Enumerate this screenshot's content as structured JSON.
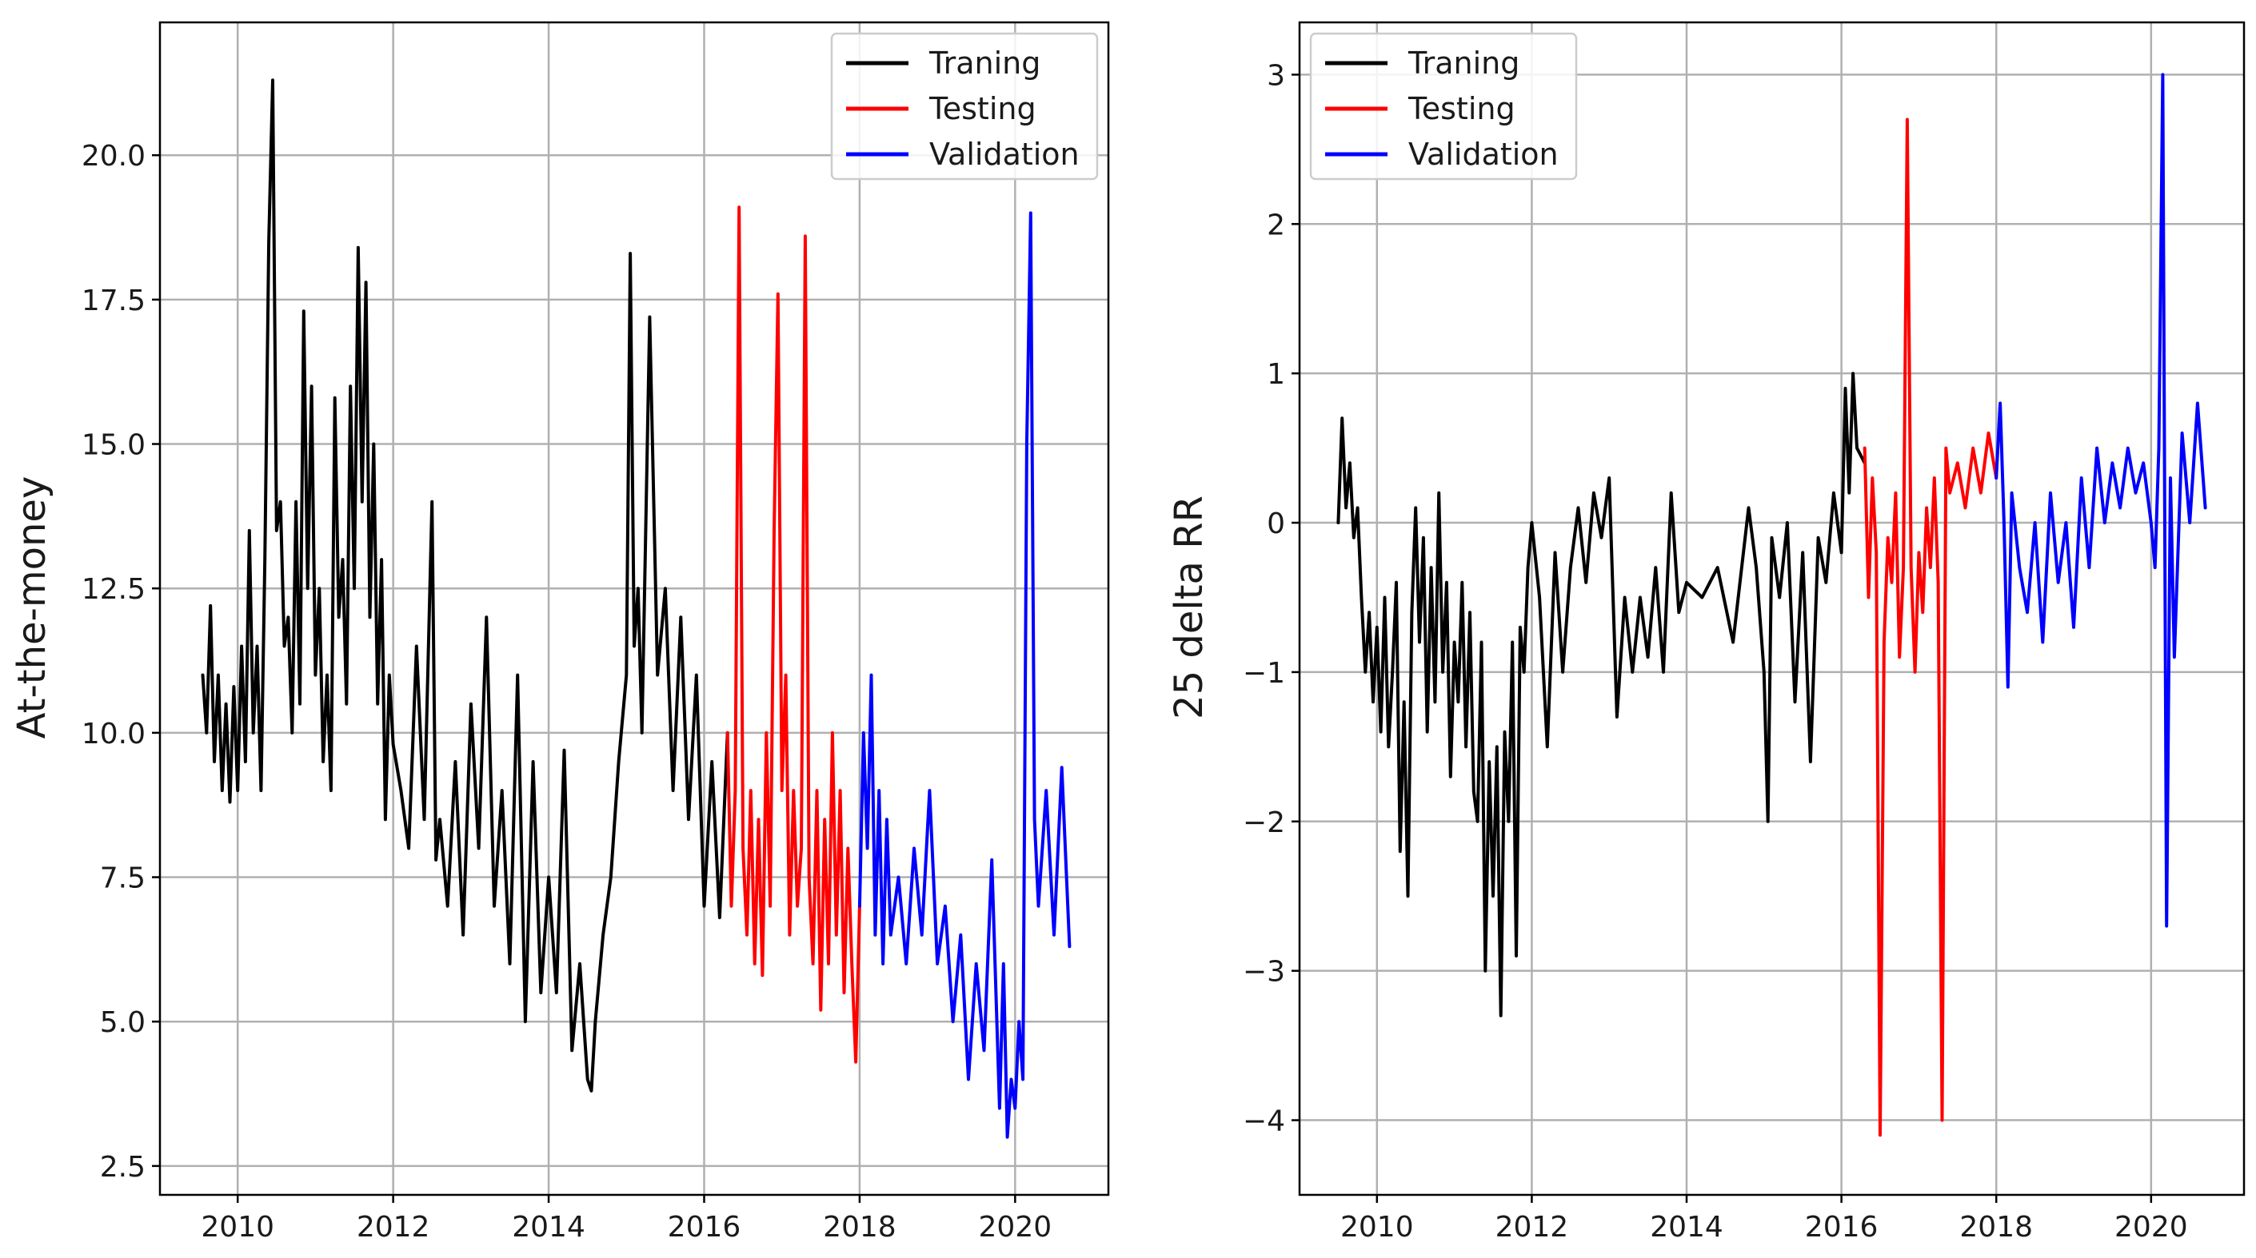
{
  "chart_data": [
    {
      "type": "line",
      "title": "",
      "xlabel": "",
      "ylabel": "At-the-money",
      "xlim": [
        2009.0,
        2021.2
      ],
      "ylim": [
        2.0,
        22.3
      ],
      "xticks": [
        2010,
        2012,
        2014,
        2016,
        2018,
        2020
      ],
      "xtick_labels": [
        "2010",
        "2012",
        "2014",
        "2016",
        "2018",
        "2020"
      ],
      "yticks": [
        2.5,
        5.0,
        7.5,
        10.0,
        12.5,
        15.0,
        17.5,
        20.0
      ],
      "ytick_labels": [
        "2.5",
        "5.0",
        "7.5",
        "10.0",
        "12.5",
        "15.0",
        "17.5",
        "20.0"
      ],
      "grid": true,
      "legend_position": "top-right",
      "series": [
        {
          "name": "Traning",
          "color": "#000000",
          "x": [
            2009.55,
            2009.6,
            2009.65,
            2009.7,
            2009.75,
            2009.8,
            2009.85,
            2009.9,
            2009.95,
            2010.0,
            2010.05,
            2010.1,
            2010.15,
            2010.2,
            2010.25,
            2010.3,
            2010.35,
            2010.4,
            2010.45,
            2010.5,
            2010.55,
            2010.6,
            2010.65,
            2010.7,
            2010.75,
            2010.8,
            2010.85,
            2010.9,
            2010.95,
            2011.0,
            2011.05,
            2011.1,
            2011.15,
            2011.2,
            2011.25,
            2011.3,
            2011.35,
            2011.4,
            2011.45,
            2011.5,
            2011.55,
            2011.6,
            2011.65,
            2011.7,
            2011.75,
            2011.8,
            2011.85,
            2011.9,
            2011.95,
            2012.0,
            2012.1,
            2012.2,
            2012.3,
            2012.4,
            2012.5,
            2012.55,
            2012.6,
            2012.7,
            2012.8,
            2012.9,
            2013.0,
            2013.1,
            2013.2,
            2013.3,
            2013.4,
            2013.5,
            2013.6,
            2013.7,
            2013.8,
            2013.9,
            2014.0,
            2014.1,
            2014.2,
            2014.3,
            2014.4,
            2014.5,
            2014.55,
            2014.6,
            2014.7,
            2014.8,
            2014.9,
            2015.0,
            2015.05,
            2015.1,
            2015.15,
            2015.2,
            2015.3,
            2015.4,
            2015.5,
            2015.6,
            2015.7,
            2015.8,
            2015.9,
            2016.0,
            2016.1,
            2016.2,
            2016.3
          ],
          "y": [
            11.0,
            10.0,
            12.2,
            9.5,
            11.0,
            9.0,
            10.5,
            8.8,
            10.8,
            9.0,
            11.5,
            9.5,
            13.5,
            10.0,
            11.5,
            9.0,
            13.0,
            18.5,
            21.3,
            13.5,
            14.0,
            11.5,
            12.0,
            10.0,
            14.0,
            10.5,
            17.3,
            12.5,
            16.0,
            11.0,
            12.5,
            9.5,
            11.0,
            9.0,
            15.8,
            12.0,
            13.0,
            10.5,
            16.0,
            12.5,
            18.4,
            14.0,
            17.8,
            12.0,
            15.0,
            10.5,
            13.0,
            8.5,
            11.0,
            9.8,
            9.0,
            8.0,
            11.5,
            8.5,
            14.0,
            7.8,
            8.5,
            7.0,
            9.5,
            6.5,
            10.5,
            8.0,
            12.0,
            7.0,
            9.0,
            6.0,
            11.0,
            5.0,
            9.5,
            5.5,
            7.5,
            5.5,
            9.7,
            4.5,
            6.0,
            4.0,
            3.8,
            5.0,
            6.5,
            7.5,
            9.5,
            11.0,
            18.3,
            11.5,
            12.5,
            10.0,
            17.2,
            11.0,
            12.5,
            9.0,
            12.0,
            8.5,
            11.0,
            7.0,
            9.5,
            6.8,
            10.0
          ]
        },
        {
          "name": "Testing",
          "color": "#ff0000",
          "x": [
            2016.3,
            2016.35,
            2016.4,
            2016.45,
            2016.5,
            2016.55,
            2016.6,
            2016.65,
            2016.7,
            2016.75,
            2016.8,
            2016.85,
            2016.9,
            2016.95,
            2017.0,
            2017.05,
            2017.1,
            2017.15,
            2017.2,
            2017.25,
            2017.3,
            2017.35,
            2017.4,
            2017.45,
            2017.5,
            2017.55,
            2017.6,
            2017.65,
            2017.7,
            2017.75,
            2017.8,
            2017.85,
            2017.9,
            2017.95,
            2018.0
          ],
          "y": [
            10.0,
            7.0,
            9.0,
            19.1,
            8.0,
            6.5,
            9.0,
            6.0,
            8.5,
            5.8,
            10.0,
            7.0,
            13.5,
            17.6,
            9.0,
            11.0,
            6.5,
            9.0,
            7.0,
            8.0,
            18.6,
            7.5,
            6.0,
            9.0,
            5.2,
            8.5,
            6.0,
            10.0,
            6.5,
            9.0,
            5.5,
            8.0,
            6.0,
            4.3,
            7.0
          ]
        },
        {
          "name": "Validation",
          "color": "#0000ff",
          "x": [
            2018.0,
            2018.05,
            2018.1,
            2018.15,
            2018.2,
            2018.25,
            2018.3,
            2018.35,
            2018.4,
            2018.5,
            2018.6,
            2018.7,
            2018.8,
            2018.9,
            2019.0,
            2019.1,
            2019.2,
            2019.3,
            2019.4,
            2019.5,
            2019.6,
            2019.7,
            2019.8,
            2019.85,
            2019.9,
            2019.95,
            2020.0,
            2020.05,
            2020.1,
            2020.15,
            2020.2,
            2020.25,
            2020.3,
            2020.4,
            2020.5,
            2020.6,
            2020.7
          ],
          "y": [
            7.0,
            10.0,
            8.0,
            11.0,
            6.5,
            9.0,
            6.0,
            8.5,
            6.5,
            7.5,
            6.0,
            8.0,
            6.5,
            9.0,
            6.0,
            7.0,
            5.0,
            6.5,
            4.0,
            6.0,
            4.5,
            7.8,
            3.5,
            6.0,
            3.0,
            4.0,
            3.5,
            5.0,
            4.0,
            15.0,
            19.0,
            8.5,
            7.0,
            9.0,
            6.5,
            9.4,
            6.3
          ]
        }
      ]
    },
    {
      "type": "line",
      "title": "",
      "xlabel": "",
      "ylabel": "25 delta RR",
      "xlim": [
        2009.0,
        2021.2
      ],
      "ylim": [
        -4.5,
        3.35
      ],
      "xticks": [
        2010,
        2012,
        2014,
        2016,
        2018,
        2020
      ],
      "xtick_labels": [
        "2010",
        "2012",
        "2014",
        "2016",
        "2018",
        "2020"
      ],
      "yticks": [
        -4,
        -3,
        -2,
        -1,
        0,
        1,
        2,
        3
      ],
      "ytick_labels": [
        "−4",
        "−3",
        "−2",
        "−1",
        "0",
        "1",
        "2",
        "3"
      ],
      "grid": true,
      "legend_position": "top-left",
      "series": [
        {
          "name": "Traning",
          "color": "#000000",
          "x": [
            2009.5,
            2009.55,
            2009.6,
            2009.65,
            2009.7,
            2009.75,
            2009.8,
            2009.85,
            2009.9,
            2009.95,
            2010.0,
            2010.05,
            2010.1,
            2010.15,
            2010.2,
            2010.25,
            2010.3,
            2010.35,
            2010.4,
            2010.45,
            2010.5,
            2010.55,
            2010.6,
            2010.65,
            2010.7,
            2010.75,
            2010.8,
            2010.85,
            2010.9,
            2010.95,
            2011.0,
            2011.05,
            2011.1,
            2011.15,
            2011.2,
            2011.25,
            2011.3,
            2011.35,
            2011.4,
            2011.45,
            2011.5,
            2011.55,
            2011.6,
            2011.65,
            2011.7,
            2011.75,
            2011.8,
            2011.85,
            2011.9,
            2011.95,
            2012.0,
            2012.1,
            2012.2,
            2012.3,
            2012.4,
            2012.5,
            2012.6,
            2012.7,
            2012.8,
            2012.9,
            2013.0,
            2013.1,
            2013.2,
            2013.3,
            2013.4,
            2013.5,
            2013.6,
            2013.7,
            2013.8,
            2013.9,
            2014.0,
            2014.2,
            2014.4,
            2014.6,
            2014.8,
            2014.9,
            2015.0,
            2015.05,
            2015.1,
            2015.2,
            2015.3,
            2015.4,
            2015.5,
            2015.6,
            2015.7,
            2015.8,
            2015.9,
            2016.0,
            2016.05,
            2016.1,
            2016.15,
            2016.2,
            2016.3
          ],
          "y": [
            0.0,
            0.7,
            0.1,
            0.4,
            -0.1,
            0.1,
            -0.5,
            -1.0,
            -0.6,
            -1.2,
            -0.7,
            -1.4,
            -0.5,
            -1.5,
            -1.0,
            -0.4,
            -2.2,
            -1.2,
            -2.5,
            -0.6,
            0.1,
            -0.8,
            -0.1,
            -1.4,
            -0.3,
            -1.2,
            0.2,
            -1.0,
            -0.4,
            -1.7,
            -0.8,
            -1.2,
            -0.4,
            -1.5,
            -0.6,
            -1.8,
            -2.0,
            -0.8,
            -3.0,
            -1.6,
            -2.5,
            -1.5,
            -3.3,
            -1.4,
            -2.0,
            -0.8,
            -2.9,
            -0.7,
            -1.0,
            -0.3,
            0.0,
            -0.5,
            -1.5,
            -0.2,
            -1.0,
            -0.3,
            0.1,
            -0.4,
            0.2,
            -0.1,
            0.3,
            -1.3,
            -0.5,
            -1.0,
            -0.5,
            -0.9,
            -0.3,
            -1.0,
            0.2,
            -0.6,
            -0.4,
            -0.5,
            -0.3,
            -0.8,
            0.1,
            -0.3,
            -1.0,
            -2.0,
            -0.1,
            -0.5,
            0.0,
            -1.2,
            -0.2,
            -1.6,
            -0.1,
            -0.4,
            0.2,
            -0.2,
            0.9,
            0.2,
            1.0,
            0.5,
            0.4
          ]
        },
        {
          "name": "Testing",
          "color": "#ff0000",
          "x": [
            2016.3,
            2016.35,
            2016.4,
            2016.45,
            2016.5,
            2016.55,
            2016.6,
            2016.65,
            2016.7,
            2016.75,
            2016.8,
            2016.85,
            2016.9,
            2016.95,
            2017.0,
            2017.05,
            2017.1,
            2017.15,
            2017.2,
            2017.25,
            2017.3,
            2017.35,
            2017.4,
            2017.5,
            2017.6,
            2017.7,
            2017.8,
            2017.9,
            2018.0
          ],
          "y": [
            0.5,
            -0.5,
            0.3,
            -0.2,
            -4.1,
            -0.8,
            -0.1,
            -0.4,
            0.2,
            -0.9,
            -0.3,
            2.7,
            -0.3,
            -1.0,
            -0.2,
            -0.6,
            0.1,
            -0.3,
            0.3,
            -0.4,
            -4.0,
            0.5,
            0.2,
            0.4,
            0.1,
            0.5,
            0.2,
            0.6,
            0.3
          ]
        },
        {
          "name": "Validation",
          "color": "#0000ff",
          "x": [
            2018.0,
            2018.05,
            2018.1,
            2018.15,
            2018.2,
            2018.3,
            2018.4,
            2018.5,
            2018.6,
            2018.7,
            2018.8,
            2018.9,
            2019.0,
            2019.1,
            2019.2,
            2019.3,
            2019.4,
            2019.5,
            2019.6,
            2019.7,
            2019.8,
            2019.9,
            2020.0,
            2020.05,
            2020.1,
            2020.15,
            2020.2,
            2020.25,
            2020.3,
            2020.4,
            2020.5,
            2020.6,
            2020.7
          ],
          "y": [
            0.3,
            0.8,
            0.0,
            -1.1,
            0.2,
            -0.3,
            -0.6,
            0.0,
            -0.8,
            0.2,
            -0.4,
            0.0,
            -0.7,
            0.3,
            -0.3,
            0.5,
            0.0,
            0.4,
            0.1,
            0.5,
            0.2,
            0.4,
            0.0,
            -0.3,
            0.5,
            3.0,
            -2.7,
            0.3,
            -0.9,
            0.6,
            0.0,
            0.8,
            0.1
          ]
        }
      ]
    }
  ]
}
